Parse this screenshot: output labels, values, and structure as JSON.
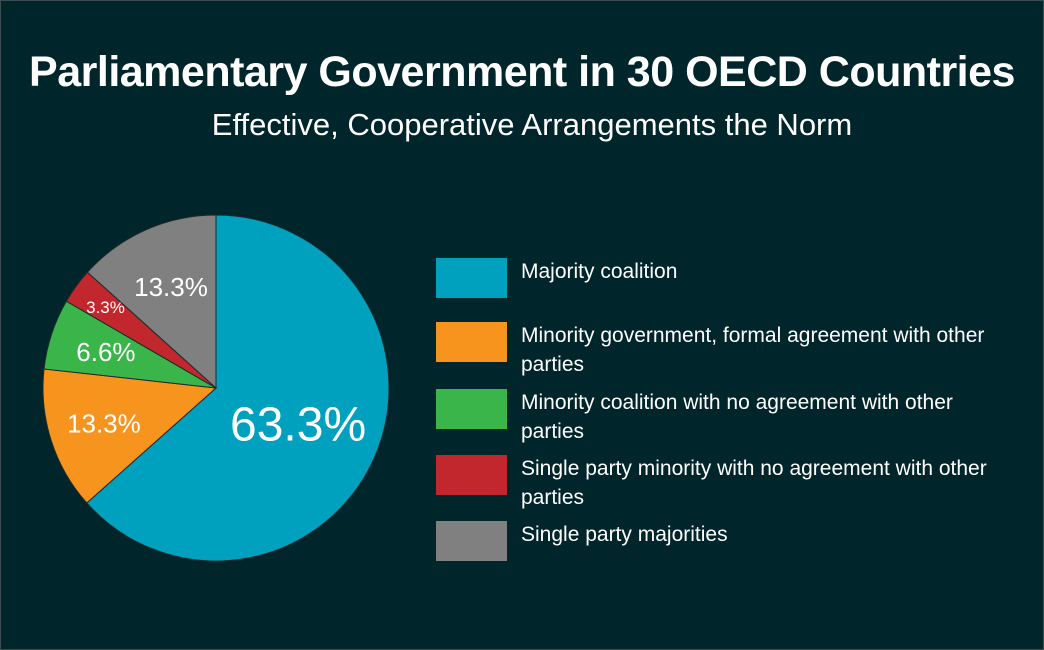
{
  "title": "Parliamentary Government in 30 OECD Countries",
  "subtitle": "Effective, Cooperative Arrangements the Norm",
  "chart_data": {
    "type": "pie",
    "title": "Parliamentary Government in 30 OECD Countries",
    "subtitle": "Effective, Cooperative Arrangements the Norm",
    "legend_position": "right",
    "slices": [
      {
        "label": "Majority coalition",
        "value": 63.3,
        "display": "63.3%",
        "color": "#00a0bf"
      },
      {
        "label": "Minority government, formal agreement with other parties",
        "value": 13.3,
        "display": "13.3%",
        "color": "#f7941d"
      },
      {
        "label": "Minority coalition with no agreement with other parties",
        "value": 6.6,
        "display": "6.6%",
        "color": "#39b54a"
      },
      {
        "label": "Single party minority with no agreement with other parties",
        "value": 3.3,
        "display": "3.3%",
        "color": "#c1272d"
      },
      {
        "label": "Single party majorities",
        "value": 13.3,
        "display": "13.3%",
        "color": "#808080"
      }
    ]
  }
}
